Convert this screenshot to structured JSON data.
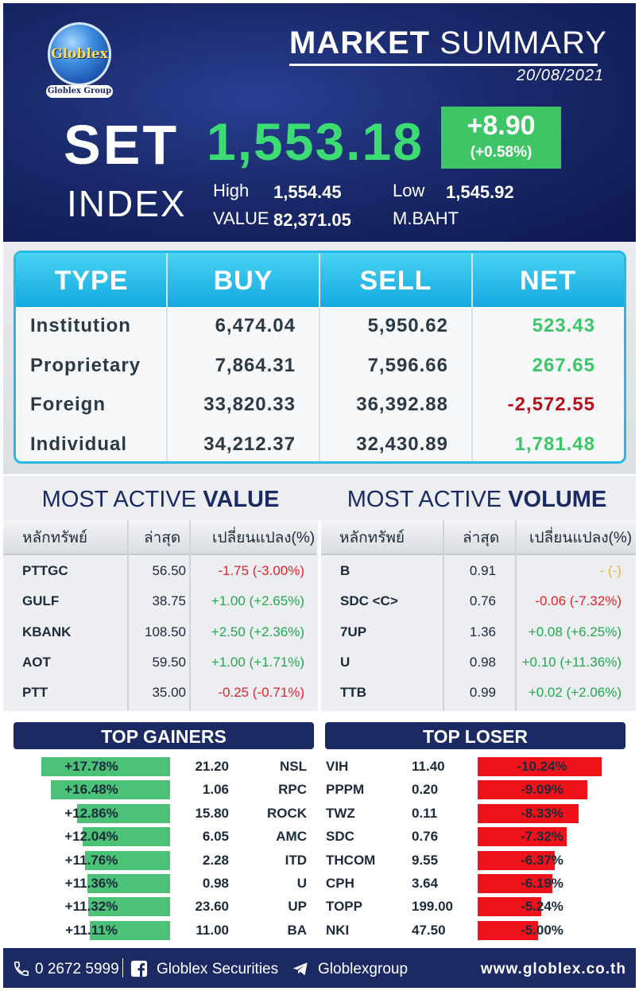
{
  "header": {
    "logo": {
      "word": "Globlex",
      "group": "Globlex Group"
    },
    "title_bold": "MARKET",
    "title_rest": "SUMMARY",
    "date": "20/08/2021",
    "set_label": "SET",
    "index_label": "INDEX",
    "index_value": "1,553.18",
    "change": "+8.90",
    "change_pct": "(+0.58%)",
    "high_label": "High",
    "high_value": "1,554.45",
    "low_label": "Low",
    "low_value": "1,545.92",
    "value_label": "VALUE",
    "value_value": "82,371.05",
    "unit": "M.BAHT",
    "colors": {
      "index_green": "#3ddc72",
      "change_box": "#3fc466"
    }
  },
  "investor_table": {
    "headers": [
      "TYPE",
      "BUY",
      "SELL",
      "NET"
    ],
    "rows": [
      {
        "type": "Institution",
        "buy": "6,474.04",
        "sell": "5,950.62",
        "net": "523.43",
        "dir": "pos"
      },
      {
        "type": "Proprietary",
        "buy": "7,864.31",
        "sell": "7,596.66",
        "net": "267.65",
        "dir": "pos"
      },
      {
        "type": "Foreign",
        "buy": "33,820.33",
        "sell": "36,392.88",
        "net": "-2,572.55",
        "dir": "negdark"
      },
      {
        "type": "Individual",
        "buy": "34,212.37",
        "sell": "32,430.89",
        "net": "1,781.48",
        "dir": "pos"
      }
    ]
  },
  "most_active_value": {
    "title_light": "MOST ACTIVE",
    "title_bold": "VALUE",
    "headers": [
      "หลักทรัพย์",
      "ล่าสุด",
      "เปลี่ยนแปลง(%)"
    ],
    "rows": [
      {
        "symbol": "PTTGC",
        "last": "56.50",
        "change": "-1.75 (-3.00%)",
        "dir": "neg"
      },
      {
        "symbol": "GULF",
        "last": "38.75",
        "change": "+1.00 (+2.65%)",
        "dir": "pos"
      },
      {
        "symbol": "KBANK",
        "last": "108.50",
        "change": "+2.50 (+2.36%)",
        "dir": "pos"
      },
      {
        "symbol": "AOT",
        "last": "59.50",
        "change": "+1.00 (+1.71%)",
        "dir": "pos"
      },
      {
        "symbol": "PTT",
        "last": "35.00",
        "change": "-0.25 (-0.71%)",
        "dir": "neg"
      }
    ]
  },
  "most_active_volume": {
    "title_light": "MOST ACTIVE",
    "title_bold": "VOLUME",
    "headers": [
      "หลักทรัพย์",
      "ล่าสุด",
      "เปลี่ยนแปลง(%)"
    ],
    "rows": [
      {
        "symbol": "B",
        "last": "0.91",
        "change": "- (-)",
        "dir": "neu"
      },
      {
        "symbol": "SDC <C>",
        "last": "0.76",
        "change": "-0.06 (-7.32%)",
        "dir": "neg"
      },
      {
        "symbol": "7UP",
        "last": "1.36",
        "change": "+0.08 (+6.25%)",
        "dir": "pos"
      },
      {
        "symbol": "U",
        "last": "0.98",
        "change": "+0.10 (+11.36%)",
        "dir": "pos"
      },
      {
        "symbol": "TTB",
        "last": "0.99",
        "change": "+0.02 (+2.06%)",
        "dir": "pos"
      }
    ]
  },
  "top_gainers": {
    "title": "TOP GAINERS",
    "rows": [
      {
        "pct": "+17.78%",
        "pct_value": 17.78,
        "price": "21.20",
        "symbol": "NSL"
      },
      {
        "pct": "+16.48%",
        "pct_value": 16.48,
        "price": "1.06",
        "symbol": "RPC"
      },
      {
        "pct": "+12.86%",
        "pct_value": 12.86,
        "price": "15.80",
        "symbol": "ROCK"
      },
      {
        "pct": "+12.04%",
        "pct_value": 12.04,
        "price": "6.05",
        "symbol": "AMC"
      },
      {
        "pct": "+11.76%",
        "pct_value": 11.76,
        "price": "2.28",
        "symbol": "ITD"
      },
      {
        "pct": "+11.36%",
        "pct_value": 11.36,
        "price": "0.98",
        "symbol": "U"
      },
      {
        "pct": "+11.32%",
        "pct_value": 11.32,
        "price": "23.60",
        "symbol": "UP"
      },
      {
        "pct": "+11.11%",
        "pct_value": 11.11,
        "price": "11.00",
        "symbol": "BA"
      }
    ]
  },
  "top_loser": {
    "title": "TOP LOSER",
    "rows": [
      {
        "symbol": "VIH",
        "price": "11.40",
        "pct": "-10.24%",
        "pct_value": 10.24
      },
      {
        "symbol": "PPPM",
        "price": "0.20",
        "pct": "-9.09%",
        "pct_value": 9.09
      },
      {
        "symbol": "TWZ",
        "price": "0.11",
        "pct": "-8.33%",
        "pct_value": 8.33
      },
      {
        "symbol": "SDC",
        "price": "0.76",
        "pct": "-7.32%",
        "pct_value": 7.32
      },
      {
        "symbol": "THCOM",
        "price": "9.55",
        "pct": "-6.37%",
        "pct_value": 6.37
      },
      {
        "symbol": "CPH",
        "price": "3.64",
        "pct": "-6.19%",
        "pct_value": 6.19
      },
      {
        "symbol": "TOPP",
        "price": "199.00",
        "pct": "-5.24%",
        "pct_value": 5.24
      },
      {
        "symbol": "NKI",
        "price": "47.50",
        "pct": "-5.00%",
        "pct_value": 5.0
      }
    ]
  },
  "footer": {
    "phone": "0 2672 5999",
    "facebook": "Globlex Securities",
    "telegram": "Globlexgroup",
    "website": "www.globlex.co.th",
    "icons": [
      "phone-icon",
      "facebook-icon",
      "telegram-icon"
    ]
  }
}
